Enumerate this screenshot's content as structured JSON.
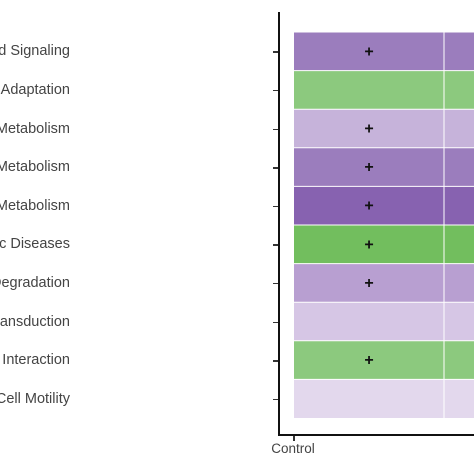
{
  "chart_data": {
    "type": "heatmap",
    "title": "",
    "xlabel": "",
    "ylabel": "",
    "columns": [
      "Control",
      ""
    ],
    "rows": [
      "Unclassified; Cellular Processes and Signaling",
      "Organismal Systems; Environmental Adaptation",
      "Metabolism; Glycan Biosynthesis and Metabolism",
      "Metabolism; Energy Metabolism",
      "Metabolism; Carbohydrate Metabolism",
      "Human Diseases; Metabolic Diseases",
      "Genetic Information Processing; Folding, Sorting and Degradation",
      "Genetic Information Processing; Signal Transduction",
      "Environmental Information Processing; Signaling Molecules and Interaction",
      "Cellular Processes; Cell Motility"
    ],
    "row_labels_visible": [
      "ssified; Cellular Processes and Signaling",
      "mal Systems; Environmental Adaptation",
      "m; Glycan Biosynthesis and Metabolism",
      "Metabolism; Energy Metabolism",
      "Metabolism; Carbohydrate Metabolism",
      "Human Diseases; Metabolic Diseases",
      "essing; Folding, Sorting and Degradation",
      "rmation Processing; Signal Transduction",
      "sing; Signaling Molecules and Interaction",
      "Cellular Processes; Cell Motility"
    ],
    "cell_colors": [
      [
        "#9b7dbd",
        "#9b7dbd"
      ],
      [
        "#8cc97e",
        "#8cc97e"
      ],
      [
        "#c6b3da",
        "#c6b3da"
      ],
      [
        "#9b7dbd",
        "#9b7dbd"
      ],
      [
        "#8762b0",
        "#8762b0"
      ],
      [
        "#72be5e",
        "#72be5e"
      ],
      [
        "#b89fd1",
        "#b89fd1"
      ],
      [
        "#d6c6e5",
        "#d6c6e5"
      ],
      [
        "#8cc97e",
        "#8cc97e"
      ],
      [
        "#e3d8ed",
        "#e3d8ed"
      ]
    ],
    "significance": [
      [
        "+",
        ""
      ],
      [
        "",
        ""
      ],
      [
        "+",
        ""
      ],
      [
        "+",
        ""
      ],
      [
        "+",
        ""
      ],
      [
        "+",
        ""
      ],
      [
        "+",
        ""
      ],
      [
        "",
        ""
      ],
      [
        "+",
        ""
      ],
      [
        "",
        ""
      ]
    ],
    "legend": "none"
  }
}
